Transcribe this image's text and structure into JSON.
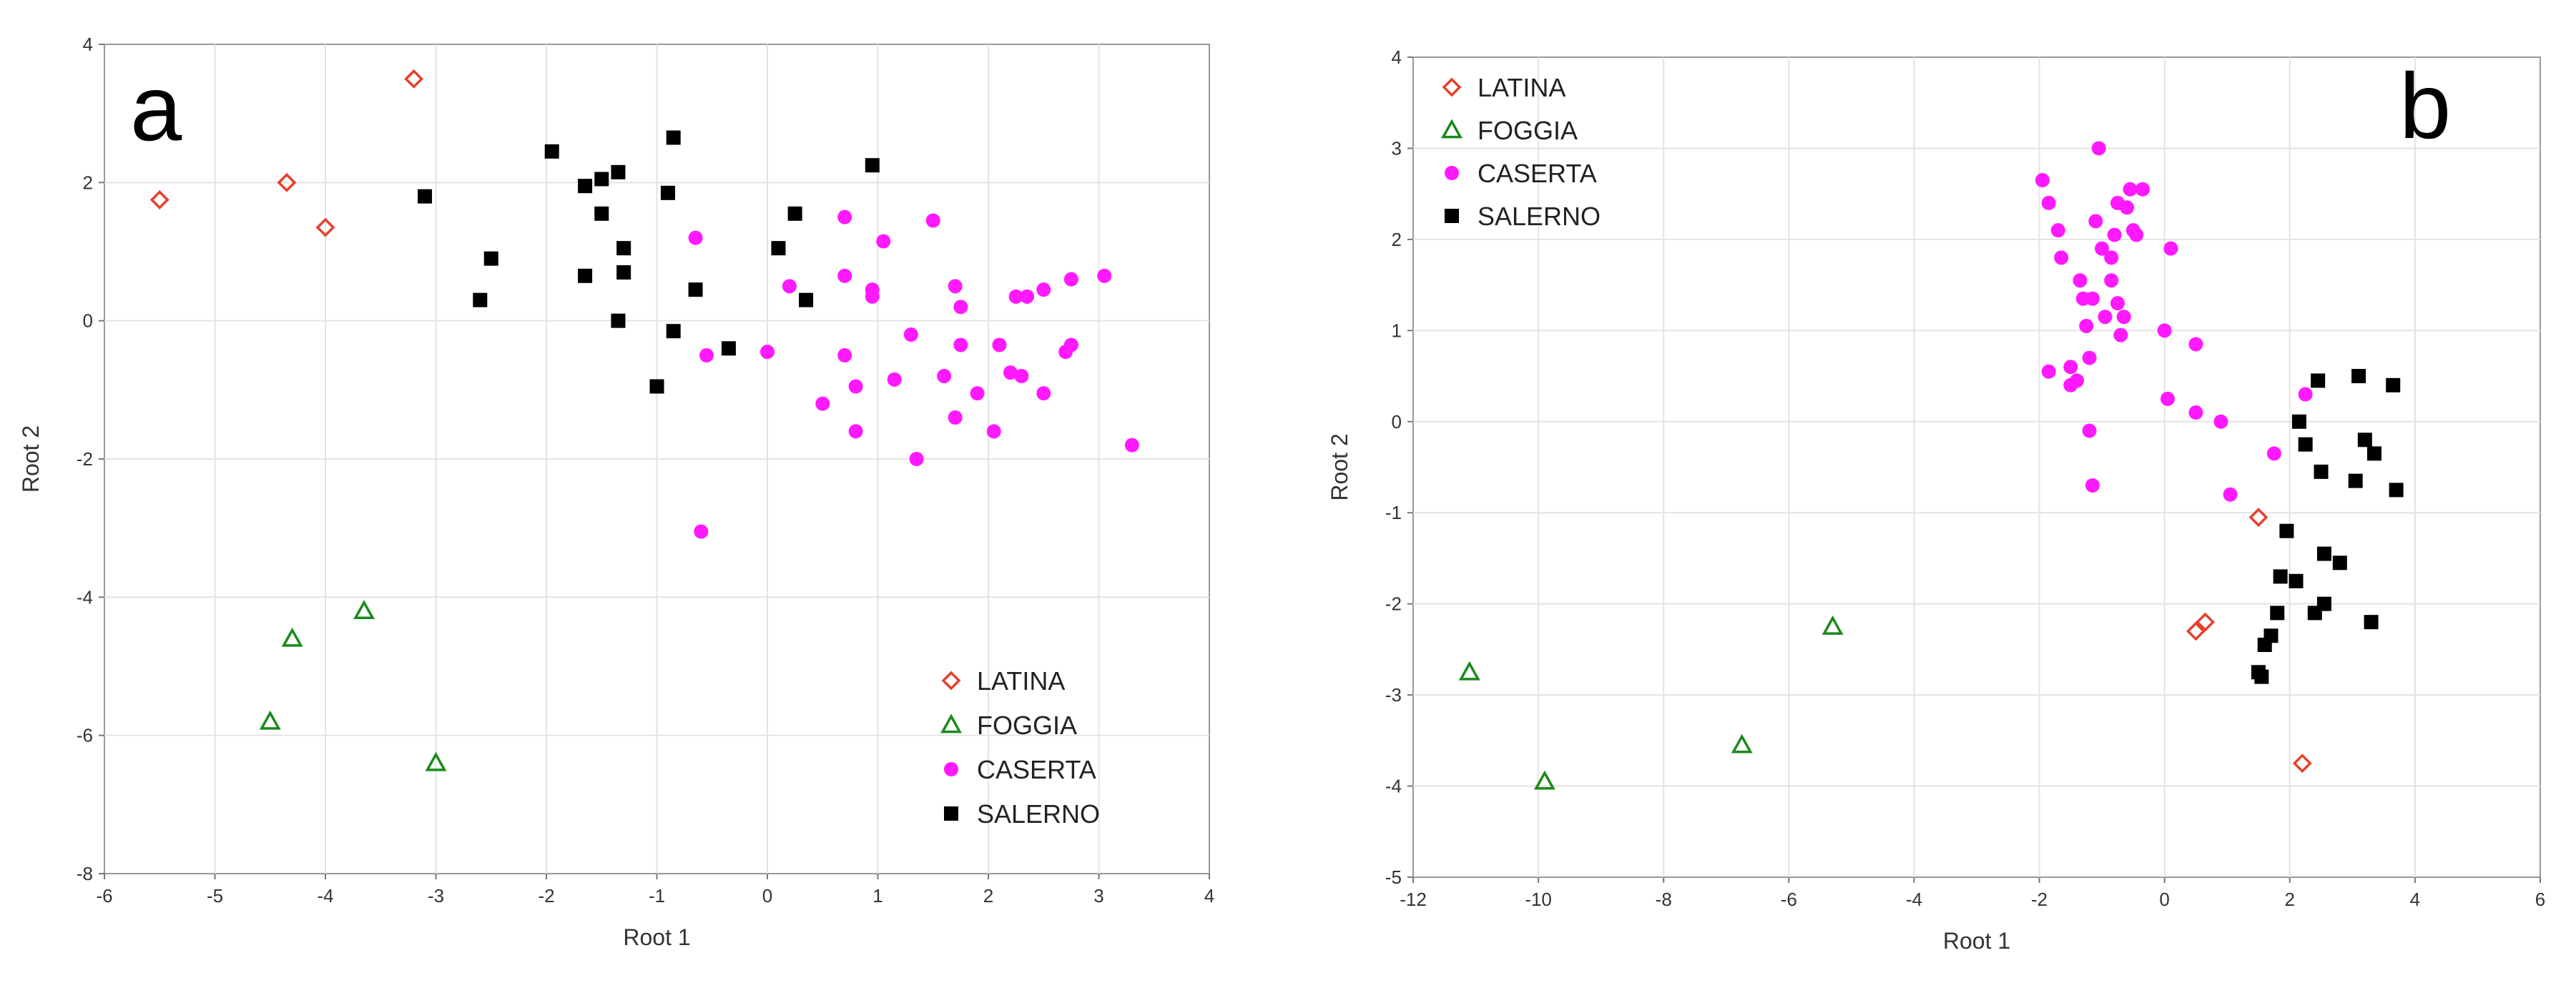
{
  "chart_data": [
    {
      "type": "scatter",
      "panel_label": "a",
      "xlabel": "Root 1",
      "ylabel": "Root 2",
      "xlim": [
        -6,
        4
      ],
      "ylim": [
        -8,
        4
      ],
      "xticks": [
        -6,
        -5,
        -4,
        -3,
        -2,
        -1,
        0,
        1,
        2,
        3,
        4
      ],
      "yticks": [
        -8,
        -6,
        -4,
        -2,
        0,
        2,
        4
      ],
      "grid": true,
      "legend_position": "bottom-right",
      "series": [
        {
          "name": "LATINA",
          "marker": "diamond-open",
          "color": "#e8402c",
          "points": [
            [
              -5.5,
              1.75
            ],
            [
              -4.35,
              2.0
            ],
            [
              -4.0,
              1.35
            ],
            [
              -3.2,
              3.5
            ]
          ]
        },
        {
          "name": "FOGGIA",
          "marker": "triangle-open",
          "color": "#1a8a1a",
          "points": [
            [
              -4.5,
              -5.8
            ],
            [
              -4.3,
              -4.6
            ],
            [
              -3.65,
              -4.2
            ],
            [
              -3.0,
              -6.4
            ]
          ]
        },
        {
          "name": "CASERTA",
          "marker": "circle",
          "color": "#ff19ff",
          "points": [
            [
              -0.65,
              1.2
            ],
            [
              -0.55,
              -0.5
            ],
            [
              -0.6,
              -3.05
            ],
            [
              0.0,
              -0.45
            ],
            [
              0.2,
              0.5
            ],
            [
              0.5,
              -1.2
            ],
            [
              0.7,
              1.5
            ],
            [
              0.7,
              0.65
            ],
            [
              0.7,
              -0.5
            ],
            [
              0.8,
              -1.6
            ],
            [
              0.8,
              -0.95
            ],
            [
              0.95,
              0.45
            ],
            [
              0.95,
              0.35
            ],
            [
              1.05,
              1.15
            ],
            [
              1.15,
              -0.85
            ],
            [
              1.3,
              -0.2
            ],
            [
              1.35,
              -2.0
            ],
            [
              1.5,
              1.45
            ],
            [
              1.6,
              -0.8
            ],
            [
              1.7,
              -1.4
            ],
            [
              1.7,
              0.5
            ],
            [
              1.75,
              0.2
            ],
            [
              1.75,
              -0.35
            ],
            [
              1.9,
              -1.05
            ],
            [
              2.05,
              -1.6
            ],
            [
              2.1,
              -0.35
            ],
            [
              2.2,
              -0.75
            ],
            [
              2.25,
              0.35
            ],
            [
              2.3,
              -0.8
            ],
            [
              2.35,
              0.35
            ],
            [
              2.5,
              0.45
            ],
            [
              2.5,
              -1.05
            ],
            [
              2.7,
              -0.45
            ],
            [
              2.75,
              -0.35
            ],
            [
              2.75,
              0.6
            ],
            [
              3.05,
              0.65
            ],
            [
              3.3,
              -1.8
            ]
          ]
        },
        {
          "name": "SALERNO",
          "marker": "square",
          "color": "#000000",
          "points": [
            [
              -3.1,
              1.8
            ],
            [
              -2.6,
              0.3
            ],
            [
              -2.5,
              0.9
            ],
            [
              -1.95,
              2.45
            ],
            [
              -1.65,
              1.95
            ],
            [
              -1.65,
              0.65
            ],
            [
              -1.5,
              2.05
            ],
            [
              -1.5,
              1.55
            ],
            [
              -1.35,
              2.15
            ],
            [
              -1.35,
              0.0
            ],
            [
              -1.3,
              1.05
            ],
            [
              -1.3,
              0.7
            ],
            [
              -1.0,
              -0.95
            ],
            [
              -0.9,
              1.85
            ],
            [
              -0.85,
              -0.15
            ],
            [
              -0.85,
              2.65
            ],
            [
              -0.65,
              0.45
            ],
            [
              -0.35,
              -0.4
            ],
            [
              0.1,
              1.05
            ],
            [
              0.25,
              1.55
            ],
            [
              0.35,
              0.3
            ],
            [
              0.95,
              2.25
            ]
          ]
        }
      ]
    },
    {
      "type": "scatter",
      "panel_label": "b",
      "xlabel": "Root 1",
      "ylabel": "Root 2",
      "xlim": [
        -12,
        6
      ],
      "ylim": [
        -5,
        4
      ],
      "xticks": [
        -12,
        -10,
        -8,
        -6,
        -4,
        -2,
        0,
        2,
        4,
        6
      ],
      "yticks": [
        -5,
        -4,
        -3,
        -2,
        -1,
        0,
        1,
        2,
        3,
        4
      ],
      "grid": true,
      "legend_position": "top-left",
      "series": [
        {
          "name": "LATINA",
          "marker": "diamond-open",
          "color": "#e8402c",
          "points": [
            [
              0.5,
              -2.3
            ],
            [
              0.65,
              -2.2
            ],
            [
              1.5,
              -1.05
            ],
            [
              2.2,
              -3.75
            ]
          ]
        },
        {
          "name": "FOGGIA",
          "marker": "triangle-open",
          "color": "#1a8a1a",
          "points": [
            [
              -11.1,
              -2.75
            ],
            [
              -9.9,
              -3.95
            ],
            [
              -6.75,
              -3.55
            ],
            [
              -5.3,
              -2.25
            ]
          ]
        },
        {
          "name": "CASERTA",
          "marker": "circle",
          "color": "#ff19ff",
          "points": [
            [
              -1.95,
              2.65
            ],
            [
              -1.85,
              2.4
            ],
            [
              -1.85,
              0.55
            ],
            [
              -1.7,
              2.1
            ],
            [
              -1.65,
              1.8
            ],
            [
              -1.5,
              0.6
            ],
            [
              -1.5,
              0.4
            ],
            [
              -1.4,
              0.45
            ],
            [
              -1.35,
              1.55
            ],
            [
              -1.3,
              1.35
            ],
            [
              -1.25,
              1.05
            ],
            [
              -1.2,
              -0.1
            ],
            [
              -1.2,
              0.7
            ],
            [
              -1.15,
              1.35
            ],
            [
              -1.15,
              -0.7
            ],
            [
              -1.1,
              2.2
            ],
            [
              -1.05,
              3.0
            ],
            [
              -1.0,
              1.9
            ],
            [
              -0.95,
              1.15
            ],
            [
              -0.85,
              1.8
            ],
            [
              -0.85,
              1.55
            ],
            [
              -0.8,
              2.05
            ],
            [
              -0.75,
              2.4
            ],
            [
              -0.75,
              1.3
            ],
            [
              -0.7,
              0.95
            ],
            [
              -0.65,
              1.15
            ],
            [
              -0.6,
              2.35
            ],
            [
              -0.55,
              2.55
            ],
            [
              -0.5,
              2.1
            ],
            [
              -0.45,
              2.05
            ],
            [
              -0.35,
              2.55
            ],
            [
              0.0,
              1.0
            ],
            [
              0.05,
              0.25
            ],
            [
              0.1,
              1.9
            ],
            [
              0.5,
              0.85
            ],
            [
              0.5,
              0.1
            ],
            [
              0.9,
              0.0
            ],
            [
              1.05,
              -0.8
            ],
            [
              1.75,
              -0.35
            ],
            [
              2.25,
              0.3
            ]
          ]
        },
        {
          "name": "SALERNO",
          "marker": "square",
          "color": "#000000",
          "points": [
            [
              1.5,
              -2.75
            ],
            [
              1.55,
              -2.8
            ],
            [
              1.6,
              -2.45
            ],
            [
              1.7,
              -2.35
            ],
            [
              1.8,
              -2.1
            ],
            [
              1.85,
              -1.7
            ],
            [
              1.95,
              -1.2
            ],
            [
              2.1,
              -1.75
            ],
            [
              2.15,
              0.0
            ],
            [
              2.25,
              -0.25
            ],
            [
              2.4,
              -2.1
            ],
            [
              2.45,
              0.45
            ],
            [
              2.5,
              -0.55
            ],
            [
              2.55,
              -1.45
            ],
            [
              2.55,
              -2.0
            ],
            [
              2.8,
              -1.55
            ],
            [
              3.05,
              -0.65
            ],
            [
              3.1,
              0.5
            ],
            [
              3.2,
              -0.2
            ],
            [
              3.3,
              -2.2
            ],
            [
              3.35,
              -0.35
            ],
            [
              3.65,
              0.4
            ],
            [
              3.7,
              -0.75
            ]
          ]
        }
      ]
    }
  ]
}
